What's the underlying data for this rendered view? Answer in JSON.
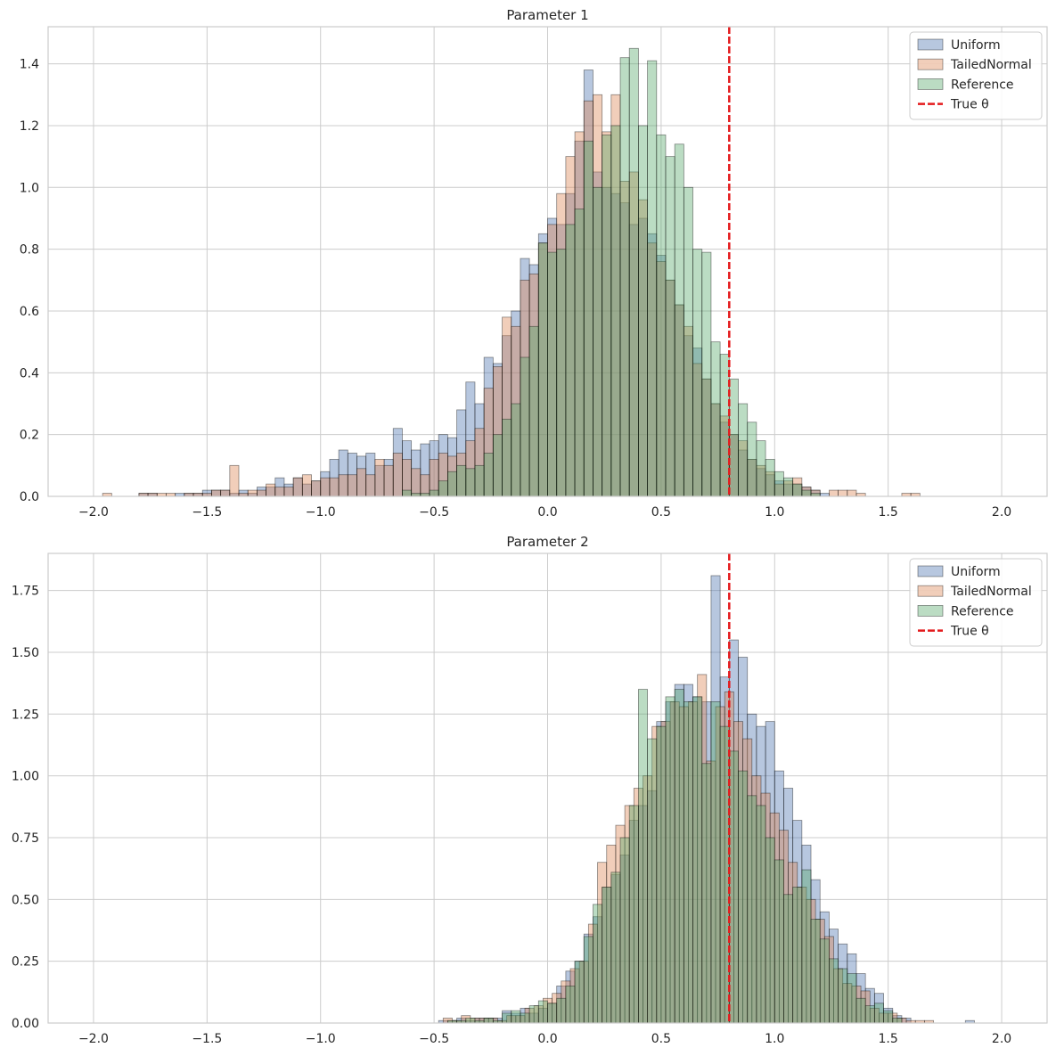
{
  "chart_data": [
    {
      "type": "histogram",
      "title": "Parameter 1",
      "xlabel": "",
      "ylabel": "",
      "xlim": [
        -2.2,
        2.2
      ],
      "ylim": [
        0,
        1.52
      ],
      "xticks": [
        -2.0,
        -1.5,
        -1.0,
        -0.5,
        0.0,
        0.5,
        1.0,
        1.5,
        2.0
      ],
      "xtick_labels": [
        "−2.0",
        "−1.5",
        "−1.0",
        "−0.5",
        "0.0",
        "0.5",
        "1.0",
        "1.5",
        "2.0"
      ],
      "yticks": [
        0.0,
        0.2,
        0.4,
        0.6,
        0.8,
        1.0,
        1.2,
        1.4
      ],
      "ytick_labels": [
        "0.0",
        "0.2",
        "0.4",
        "0.6",
        "0.8",
        "1.0",
        "1.2",
        "1.4"
      ],
      "grid": true,
      "legend_position": "top-right",
      "bin_width": 0.04,
      "true_theta": 0.8,
      "series": [
        {
          "name": "Uniform",
          "color": "#4c72b0",
          "bin_start": -1.8,
          "values": [
            0.01,
            0.01,
            0.0,
            0.0,
            0.01,
            0.01,
            0.01,
            0.02,
            0.02,
            0.02,
            0.01,
            0.02,
            0.01,
            0.03,
            0.03,
            0.06,
            0.04,
            0.06,
            0.04,
            0.05,
            0.08,
            0.12,
            0.15,
            0.14,
            0.13,
            0.14,
            0.1,
            0.12,
            0.22,
            0.18,
            0.15,
            0.17,
            0.18,
            0.2,
            0.19,
            0.28,
            0.37,
            0.3,
            0.45,
            0.43,
            0.52,
            0.6,
            0.77,
            0.75,
            0.85,
            0.9,
            0.88,
            0.98,
            1.15,
            1.38,
            1.05,
            1.0,
            0.98,
            0.95,
            0.88,
            0.9,
            0.85,
            0.78,
            0.7,
            0.62,
            0.52,
            0.48,
            0.38,
            0.3,
            0.24,
            0.2,
            0.15,
            0.12,
            0.09,
            0.07,
            0.05,
            0.04,
            0.04,
            0.03,
            0.02,
            0.01
          ]
        },
        {
          "name": "TailedNormal",
          "color": "#dd8452",
          "bin_start": -1.96,
          "values": [
            0.01,
            0,
            0,
            0,
            0.01,
            0.01,
            0.01,
            0.01,
            0,
            0.01,
            0.01,
            0.01,
            0.02,
            0.02,
            0.1,
            0.01,
            0.02,
            0.02,
            0.04,
            0.03,
            0.03,
            0.06,
            0.07,
            0.05,
            0.06,
            0.06,
            0.07,
            0.07,
            0.09,
            0.07,
            0.12,
            0.1,
            0.14,
            0.12,
            0.09,
            0.07,
            0.12,
            0.14,
            0.13,
            0.14,
            0.18,
            0.22,
            0.35,
            0.42,
            0.58,
            0.55,
            0.7,
            0.72,
            0.82,
            0.88,
            0.98,
            1.1,
            1.18,
            1.28,
            1.3,
            1.18,
            1.3,
            1.02,
            1.05,
            0.96,
            0.82,
            0.76,
            0.7,
            0.62,
            0.55,
            0.43,
            0.38,
            0.3,
            0.26,
            0.2,
            0.18,
            0.12,
            0.1,
            0.08,
            0.04,
            0.05,
            0.06,
            0.03,
            0.02,
            0,
            0.02,
            0.02,
            0.02,
            0.01,
            0,
            0,
            0,
            0,
            0.01,
            0.01
          ]
        },
        {
          "name": "Reference",
          "color": "#55a868",
          "bin_start": -0.64,
          "values": [
            0.02,
            0.01,
            0.01,
            0.02,
            0.05,
            0.08,
            0.1,
            0.09,
            0.1,
            0.14,
            0.2,
            0.25,
            0.3,
            0.45,
            0.55,
            0.82,
            0.79,
            0.8,
            0.88,
            0.93,
            1.15,
            1.0,
            1.17,
            1.2,
            1.42,
            1.45,
            1.2,
            1.41,
            1.17,
            1.1,
            1.14,
            1.0,
            0.8,
            0.79,
            0.5,
            0.46,
            0.38,
            0.3,
            0.24,
            0.18,
            0.12,
            0.08,
            0.06,
            0.04,
            0.02,
            0.01
          ]
        }
      ]
    },
    {
      "type": "histogram",
      "title": "Parameter 2",
      "xlabel": "",
      "ylabel": "",
      "xlim": [
        -2.2,
        2.2
      ],
      "ylim": [
        0,
        1.9
      ],
      "xticks": [
        -2.0,
        -1.5,
        -1.0,
        -0.5,
        0.0,
        0.5,
        1.0,
        1.5,
        2.0
      ],
      "xtick_labels": [
        "−2.0",
        "−1.5",
        "−1.0",
        "−0.5",
        "0.0",
        "0.5",
        "1.0",
        "1.5",
        "2.0"
      ],
      "yticks": [
        0.0,
        0.25,
        0.5,
        0.75,
        1.0,
        1.25,
        1.5,
        1.75
      ],
      "ytick_labels": [
        "0.00",
        "0.25",
        "0.50",
        "0.75",
        "1.00",
        "1.25",
        "1.50",
        "1.75"
      ],
      "grid": true,
      "legend_position": "top-right",
      "bin_width": 0.04,
      "true_theta": 0.8,
      "series": [
        {
          "name": "Uniform",
          "color": "#4c72b0",
          "bin_start": -0.48,
          "values": [
            0.01,
            0.01,
            0.02,
            0.01,
            0.02,
            0.02,
            0.02,
            0.05,
            0.04,
            0.06,
            0.04,
            0.06,
            0.08,
            0.15,
            0.21,
            0.25,
            0.36,
            0.43,
            0.55,
            0.6,
            0.68,
            0.82,
            0.88,
            0.94,
            1.22,
            1.3,
            1.37,
            1.37,
            1.32,
            1.3,
            1.81,
            1.4,
            1.55,
            1.48,
            1.25,
            1.2,
            1.22,
            1.02,
            0.95,
            0.82,
            0.72,
            0.58,
            0.45,
            0.38,
            0.32,
            0.28,
            0.2,
            0.14,
            0.12,
            0.06,
            0.03,
            0.02,
            0,
            0,
            0,
            0,
            0,
            0,
            0.01
          ]
        },
        {
          "name": "TailedNormal",
          "color": "#dd8452",
          "bin_start": -0.46,
          "values": [
            0.02,
            0.01,
            0.03,
            0.02,
            0.02,
            0.02,
            0.01,
            0.03,
            0.03,
            0.06,
            0.07,
            0.1,
            0.12,
            0.17,
            0.22,
            0.25,
            0.4,
            0.65,
            0.72,
            0.8,
            0.88,
            0.95,
            1.0,
            1.2,
            1.22,
            1.3,
            1.28,
            1.3,
            1.41,
            1.06,
            1.28,
            1.34,
            1.22,
            1.15,
            1.0,
            0.93,
            0.85,
            0.78,
            0.65,
            0.55,
            0.5,
            0.42,
            0.35,
            0.22,
            0.16,
            0.15,
            0.13,
            0.06,
            0.04,
            0.04,
            0.02,
            0.01,
            0.01,
            0.01
          ]
        },
        {
          "name": "Reference",
          "color": "#55a868",
          "bin_start": -0.44,
          "values": [
            0.01,
            0.01,
            0.02,
            0.01,
            0.02,
            0.01,
            0.04,
            0.05,
            0.04,
            0.07,
            0.09,
            0.08,
            0.1,
            0.15,
            0.25,
            0.35,
            0.48,
            0.55,
            0.61,
            0.75,
            0.88,
            1.35,
            1.15,
            1.2,
            1.32,
            1.35,
            1.3,
            1.32,
            1.05,
            1.3,
            1.2,
            1.1,
            1.02,
            0.92,
            0.88,
            0.75,
            0.66,
            0.52,
            0.55,
            0.62,
            0.42,
            0.34,
            0.26,
            0.22,
            0.2,
            0.1,
            0.07,
            0.08,
            0.05,
            0.02
          ]
        }
      ]
    }
  ]
}
